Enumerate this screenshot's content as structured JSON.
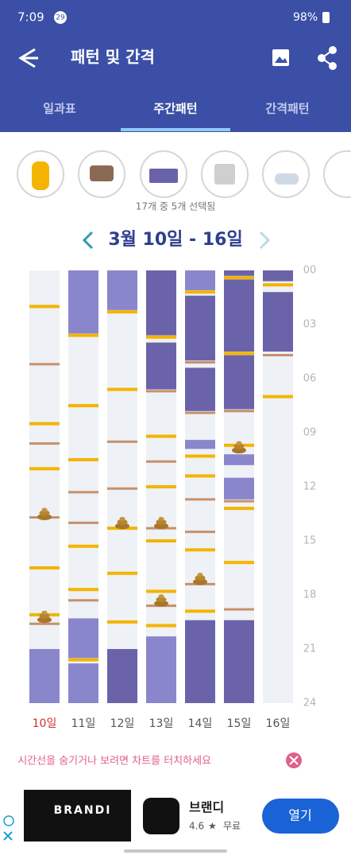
{
  "status_bar": {
    "time": "7:09",
    "badge": "29",
    "battery": "98%"
  },
  "app_bar": {
    "title": "패턴 및 간격"
  },
  "tabs": [
    "일과표",
    "주간패턴",
    "간격패턴"
  ],
  "selected_tab": 1,
  "selection_note": "17개 중 5개 선택됨",
  "week": "3월 10일 - 16일",
  "chart_data": {
    "type": "timeline",
    "ylim": [
      0,
      24
    ],
    "yticks": [
      {
        "value": 0,
        "label": "00"
      },
      {
        "value": 3,
        "label": "03"
      },
      {
        "value": 6,
        "label": "06"
      },
      {
        "value": 9,
        "label": "09"
      },
      12,
      15,
      18,
      21,
      24
    ],
    "event_colors": {
      "feed": "#f4b400",
      "diaper": "#c8906a"
    },
    "days": [
      {
        "label": "10일",
        "label_color": "#d32f2f",
        "sleep": [
          {
            "start": 21.0,
            "end": 24,
            "color": "#8a86cc"
          }
        ],
        "events": [
          {
            "hour": 2.0,
            "kind": "feed"
          },
          {
            "hour": 5.2,
            "kind": "diaper"
          },
          {
            "hour": 8.5,
            "kind": "feed"
          },
          {
            "hour": 9.6,
            "kind": "diaper"
          },
          {
            "hour": 11.0,
            "kind": "feed"
          },
          {
            "hour": 13.7,
            "kind": "diaper"
          },
          {
            "hour": 16.5,
            "kind": "feed"
          },
          {
            "hour": 19.1,
            "kind": "feed"
          },
          {
            "hour": 19.6,
            "kind": "diaper"
          }
        ],
        "poop": [
          13.5,
          19.2
        ]
      },
      {
        "label": "11일",
        "label_color": "#555555",
        "sleep": [
          {
            "start": 0,
            "end": 3.5,
            "color": "#8a86cc"
          },
          {
            "start": 19.3,
            "end": 21.5,
            "color": "#8a86cc"
          },
          {
            "start": 21.8,
            "end": 24,
            "color": "#8a86cc"
          }
        ],
        "events": [
          {
            "hour": 3.6,
            "kind": "feed"
          },
          {
            "hour": 7.5,
            "kind": "feed"
          },
          {
            "hour": 10.5,
            "kind": "feed"
          },
          {
            "hour": 12.3,
            "kind": "diaper"
          },
          {
            "hour": 14.0,
            "kind": "diaper"
          },
          {
            "hour": 15.3,
            "kind": "feed"
          },
          {
            "hour": 17.7,
            "kind": "feed"
          },
          {
            "hour": 18.3,
            "kind": "diaper"
          },
          {
            "hour": 21.6,
            "kind": "feed"
          }
        ],
        "poop": []
      },
      {
        "label": "12일",
        "label_color": "#555555",
        "sleep": [
          {
            "start": 0,
            "end": 2.2,
            "color": "#8a86cc"
          },
          {
            "start": 21.0,
            "end": 24,
            "color": "#6a63aa"
          }
        ],
        "events": [
          {
            "hour": 2.3,
            "kind": "feed"
          },
          {
            "hour": 6.6,
            "kind": "feed"
          },
          {
            "hour": 9.5,
            "kind": "diaper"
          },
          {
            "hour": 12.1,
            "kind": "diaper"
          },
          {
            "hour": 14.3,
            "kind": "feed"
          },
          {
            "hour": 16.8,
            "kind": "feed"
          },
          {
            "hour": 19.5,
            "kind": "feed"
          }
        ],
        "poop": [
          14.0
        ]
      },
      {
        "label": "13일",
        "label_color": "#555555",
        "sleep": [
          {
            "start": 0,
            "end": 3.6,
            "color": "#6a63aa"
          },
          {
            "start": 4.0,
            "end": 6.6,
            "color": "#6a63aa"
          },
          {
            "start": 20.3,
            "end": 24,
            "color": "#8a86cc"
          }
        ],
        "events": [
          {
            "hour": 3.7,
            "kind": "feed"
          },
          {
            "hour": 6.7,
            "kind": "diaper"
          },
          {
            "hour": 9.2,
            "kind": "feed"
          },
          {
            "hour": 10.6,
            "kind": "diaper"
          },
          {
            "hour": 12.0,
            "kind": "feed"
          },
          {
            "hour": 14.3,
            "kind": "diaper"
          },
          {
            "hour": 15.0,
            "kind": "feed"
          },
          {
            "hour": 17.8,
            "kind": "feed"
          },
          {
            "hour": 18.6,
            "kind": "diaper"
          },
          {
            "hour": 19.7,
            "kind": "feed"
          }
        ],
        "poop": [
          14.0,
          18.3
        ]
      },
      {
        "label": "14일",
        "label_color": "#555555",
        "sleep": [
          {
            "start": 0,
            "end": 1.1,
            "color": "#8a86cc"
          },
          {
            "start": 1.4,
            "end": 5.0,
            "color": "#6a63aa"
          },
          {
            "start": 5.4,
            "end": 7.8,
            "color": "#6a63aa"
          },
          {
            "start": 9.4,
            "end": 9.9,
            "color": "#8a86cc"
          },
          {
            "start": 19.4,
            "end": 24,
            "color": "#6a63aa"
          }
        ],
        "events": [
          {
            "hour": 1.2,
            "kind": "feed"
          },
          {
            "hour": 5.1,
            "kind": "diaper"
          },
          {
            "hour": 7.9,
            "kind": "diaper"
          },
          {
            "hour": 10.3,
            "kind": "feed"
          },
          {
            "hour": 11.4,
            "kind": "feed"
          },
          {
            "hour": 12.7,
            "kind": "diaper"
          },
          {
            "hour": 14.5,
            "kind": "diaper"
          },
          {
            "hour": 15.5,
            "kind": "feed"
          },
          {
            "hour": 17.4,
            "kind": "diaper"
          },
          {
            "hour": 18.9,
            "kind": "feed"
          }
        ],
        "poop": [
          17.1
        ]
      },
      {
        "label": "15일",
        "label_color": "#555555",
        "sleep": [
          {
            "start": 0,
            "end": 0.3,
            "color": "#6a63aa"
          },
          {
            "start": 0.5,
            "end": 4.5,
            "color": "#6a63aa"
          },
          {
            "start": 4.7,
            "end": 7.7,
            "color": "#6a63aa"
          },
          {
            "start": 10.2,
            "end": 10.8,
            "color": "#8a86cc"
          },
          {
            "start": 11.5,
            "end": 12.7,
            "color": "#8a86cc"
          },
          {
            "start": 19.4,
            "end": 24,
            "color": "#6a63aa"
          }
        ],
        "events": [
          {
            "hour": 0.4,
            "kind": "feed"
          },
          {
            "hour": 4.6,
            "kind": "feed"
          },
          {
            "hour": 7.8,
            "kind": "diaper"
          },
          {
            "hour": 9.7,
            "kind": "feed"
          },
          {
            "hour": 12.8,
            "kind": "diaper"
          },
          {
            "hour": 13.2,
            "kind": "feed"
          },
          {
            "hour": 16.2,
            "kind": "feed"
          },
          {
            "hour": 18.8,
            "kind": "diaper"
          }
        ],
        "poop": [
          9.8
        ]
      },
      {
        "label": "16일",
        "label_color": "#555555",
        "sleep": [
          {
            "start": 0,
            "end": 0.6,
            "color": "#6a63aa"
          },
          {
            "start": 1.2,
            "end": 4.5,
            "color": "#6a63aa"
          }
        ],
        "events": [
          {
            "hour": 0.8,
            "kind": "feed"
          },
          {
            "hour": 4.7,
            "kind": "diaper"
          },
          {
            "hour": 7.0,
            "kind": "feed"
          }
        ],
        "poop": []
      }
    ]
  },
  "hint": "시간선을 숨기거나 보려면 차트를 터치하세요",
  "ad": {
    "brand": "BRANDI",
    "app_name": "브랜디",
    "rating": "4.6",
    "price": "무료",
    "button": "열기"
  }
}
